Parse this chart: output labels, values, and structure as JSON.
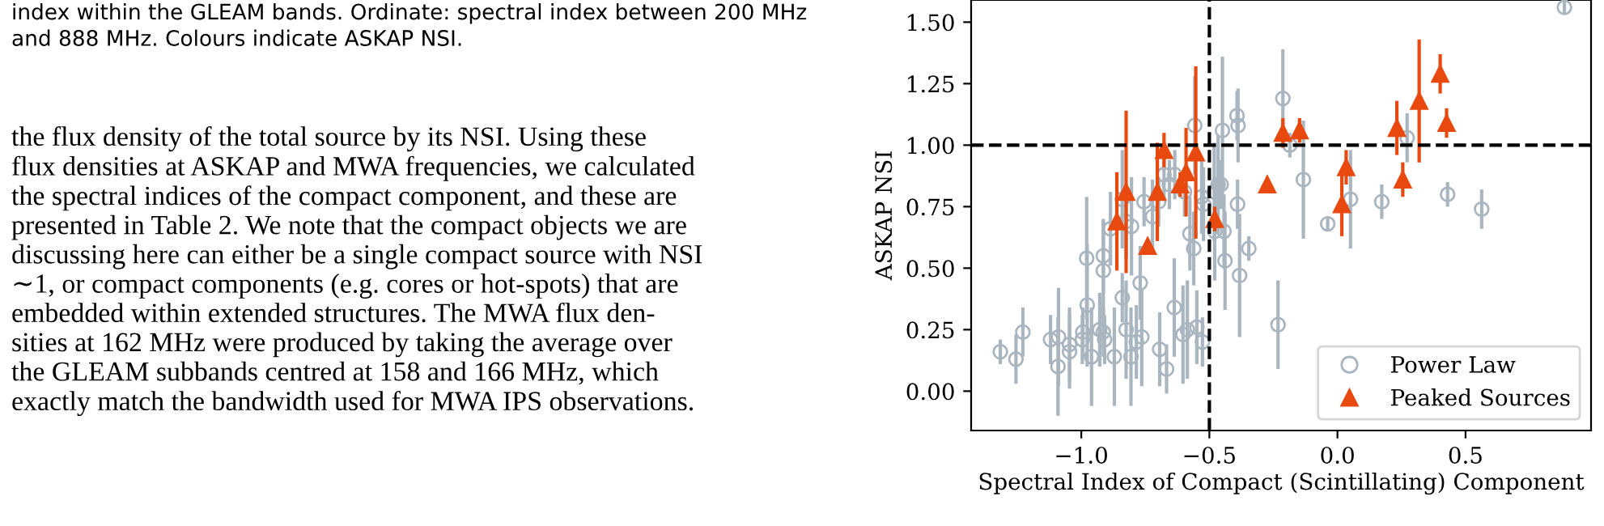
{
  "chart_data": {
    "type": "scatter",
    "xlabel": "Spectral Index of Compact (Scintillating) Component",
    "ylabel": "ASKAP NSI",
    "xlim": [
      -1.43,
      0.99
    ],
    "ylim": [
      -0.16,
      1.59
    ],
    "xticks": [
      {
        "value": -1.0,
        "label": "−1.0"
      },
      {
        "value": -0.5,
        "label": "−0.5"
      },
      {
        "value": 0.0,
        "label": "0.0"
      },
      {
        "value": 0.5,
        "label": "0.5"
      }
    ],
    "yticks": [
      {
        "value": 0.0,
        "label": "0.00"
      },
      {
        "value": 0.25,
        "label": "0.25"
      },
      {
        "value": 0.5,
        "label": "0.50"
      },
      {
        "value": 0.75,
        "label": "0.75"
      },
      {
        "value": 1.0,
        "label": "1.00"
      },
      {
        "value": 1.25,
        "label": "1.25"
      },
      {
        "value": 1.5,
        "label": "1.50"
      }
    ],
    "grid": false,
    "legend": "bottom right",
    "ref_lines": [
      {
        "axis": "x",
        "value": -0.5,
        "color": "#000000",
        "line_style": "dashed"
      },
      {
        "axis": "y",
        "value": 1.0,
        "color": "#000000",
        "line_style": "dashed"
      }
    ],
    "annotations": [
      "index within the GLEAM bands. Ordinate: spectral index between 200 MHz\nand 888 MHz. Colours indicate ASKAP NSI.",
      "the flux density of the total source by its NSI. Using these\nflux densities at ASKAP and MWA frequencies, we calculated\nthe spectral indices of the compact component, and these are\npresented in Table 2. We note that the compact objects we are\ndiscussing here can either be a single compact source with NSI\n∼1, or compact components (e.g. cores or hot-spots) that are\nembedded within extended structures. The MWA flux den-\nsities at 162 MHz were produced by taking the average over\nthe GLEAM subbands centred at 158 and 166 MHz, which\nexactly match the bandwidth used for MWA IPS observations."
    ],
    "series": [
      {
        "name": "Power Law",
        "marker": "circle",
        "color": "#a9b6c0",
        "x": [
          0.886,
          -0.213,
          -0.186,
          -0.392,
          -0.388,
          -0.449,
          -0.557,
          0.272,
          -0.133,
          -0.677,
          -0.635,
          -0.656,
          -0.597,
          -0.84,
          -0.886,
          -0.804,
          -0.825,
          -0.755,
          -0.722,
          -0.698,
          -0.53,
          -0.523,
          -0.481,
          -0.466,
          -0.454,
          -0.39,
          -0.576,
          -0.479,
          -0.443,
          -0.346,
          -0.038,
          0.051,
          0.173,
          0.43,
          0.563,
          -0.979,
          -0.914,
          -0.914,
          -0.561,
          -0.439,
          -0.382,
          -0.77,
          -0.84,
          -0.977,
          -0.637,
          -0.232,
          -0.549,
          -0.586,
          -0.603,
          -0.825,
          -0.928,
          -0.914,
          -0.994,
          -0.996,
          -0.909,
          -1.12,
          -1.089,
          -1.228,
          -1.316,
          -1.255,
          -1.046,
          -1.046,
          -1.091,
          -0.96,
          -0.871,
          -0.806,
          -0.785,
          -0.764,
          -0.694,
          -0.667,
          -0.527
        ],
        "values": [
          1.56,
          1.19,
          1.0,
          1.12,
          1.08,
          1.06,
          1.08,
          1.03,
          0.86,
          0.88,
          0.88,
          0.84,
          0.81,
          0.78,
          0.66,
          0.67,
          0.69,
          0.77,
          0.71,
          0.77,
          0.79,
          0.76,
          0.81,
          0.84,
          0.84,
          0.76,
          0.64,
          0.65,
          0.65,
          0.58,
          0.68,
          0.78,
          0.77,
          0.8,
          0.74,
          0.54,
          0.55,
          0.49,
          0.58,
          0.53,
          0.47,
          0.44,
          0.38,
          0.35,
          0.34,
          0.27,
          0.26,
          0.25,
          0.23,
          0.25,
          0.25,
          0.24,
          0.24,
          0.21,
          0.21,
          0.21,
          0.22,
          0.24,
          0.16,
          0.13,
          0.19,
          0.16,
          0.1,
          0.14,
          0.14,
          0.14,
          0.2,
          0.22,
          0.17,
          0.09,
          0.2
        ],
        "errors": [
          0.03,
          0.2,
          0.05,
          0.1,
          0.15,
          0.3,
          0.2,
          0.1,
          0.24,
          0.1,
          0.1,
          0.1,
          0.1,
          0.2,
          0.15,
          0.2,
          0.15,
          0.1,
          0.15,
          0.1,
          0.15,
          0.15,
          0.2,
          0.2,
          0.1,
          0.1,
          0.15,
          0.2,
          0.15,
          0.05,
          0.03,
          0.2,
          0.07,
          0.05,
          0.08,
          0.25,
          0.15,
          0.2,
          0.15,
          0.2,
          0.25,
          0.15,
          0.1,
          0.25,
          0.2,
          0.18,
          0.15,
          0.2,
          0.2,
          0.2,
          0.15,
          0.1,
          0.1,
          0.1,
          0.1,
          0.1,
          0.2,
          0.1,
          0.05,
          0.1,
          0.15,
          0.15,
          0.2,
          0.2,
          0.2,
          0.2,
          0.15,
          0.2,
          0.15,
          0.1,
          0.1
        ]
      },
      {
        "name": "Peaked Sources",
        "marker": "triangle",
        "color": "#e8490f",
        "x": [
          -0.861,
          -0.825,
          -0.741,
          -0.703,
          -0.677,
          -0.614,
          -0.591,
          -0.553,
          -0.479,
          -0.274,
          -0.213,
          -0.148,
          0.017,
          0.034,
          0.232,
          0.255,
          0.319,
          0.401,
          0.426
        ],
        "values": [
          0.69,
          0.81,
          0.59,
          0.81,
          0.98,
          0.84,
          0.89,
          0.97,
          0.7,
          0.84,
          1.05,
          1.06,
          0.76,
          0.91,
          1.07,
          0.86,
          1.18,
          1.29,
          1.09
        ],
        "errors": [
          0.2,
          0.33,
          0.02,
          0.2,
          0.07,
          0.05,
          0.18,
          0.35,
          0.05,
          0.01,
          0.06,
          0.05,
          0.13,
          0.07,
          0.11,
          0.07,
          0.25,
          0.08,
          0.06
        ]
      }
    ]
  }
}
